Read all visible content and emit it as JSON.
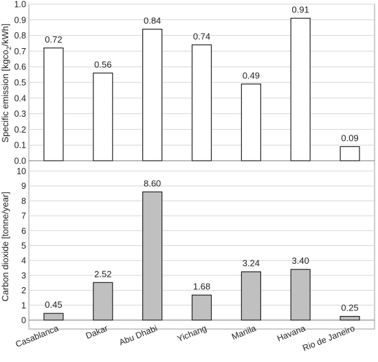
{
  "chart_data": [
    {
      "type": "bar",
      "categories": [
        "Casablanca",
        "Dakar",
        "Abu Dhabi",
        "Yichang",
        "Manila",
        "Havana",
        "Rio de Janeiro"
      ],
      "values": [
        0.72,
        0.56,
        0.84,
        0.74,
        0.49,
        0.91,
        0.09
      ],
      "data_labels": [
        "0.72",
        "0.56",
        "0.84",
        "0.74",
        "0.49",
        "0.91",
        "0.09"
      ],
      "ylabel_main": "Specific emission [kgco",
      "ylabel_sub": "2",
      "ylabel_tail": "/kWh]",
      "ylim": [
        0,
        1.0
      ],
      "yticks": [
        "0.0",
        "0.1",
        "0.2",
        "0.3",
        "0.4",
        "0.5",
        "0.6",
        "0.7",
        "0.8",
        "0.9",
        "1.0"
      ],
      "bar_color": "#ffffff",
      "grid": true
    },
    {
      "type": "bar",
      "categories": [
        "Casablanca",
        "Dakar",
        "Abu Dhabi",
        "Yichang",
        "Manila",
        "Havana",
        "Rio de Janeiro"
      ],
      "values": [
        0.45,
        2.52,
        8.6,
        1.68,
        3.24,
        3.4,
        0.25
      ],
      "data_labels": [
        "0.45",
        "2.52",
        "8.60",
        "1.68",
        "3.24",
        "3.40",
        "0.25"
      ],
      "ylabel": "Carbon dioxide [tonne/year]",
      "ylim": [
        0,
        10
      ],
      "yticks": [
        "0",
        "1",
        "2",
        "3",
        "4",
        "5",
        "6",
        "7",
        "8",
        "9",
        "10"
      ],
      "bar_color": "#c0c0c0",
      "grid": true
    }
  ]
}
